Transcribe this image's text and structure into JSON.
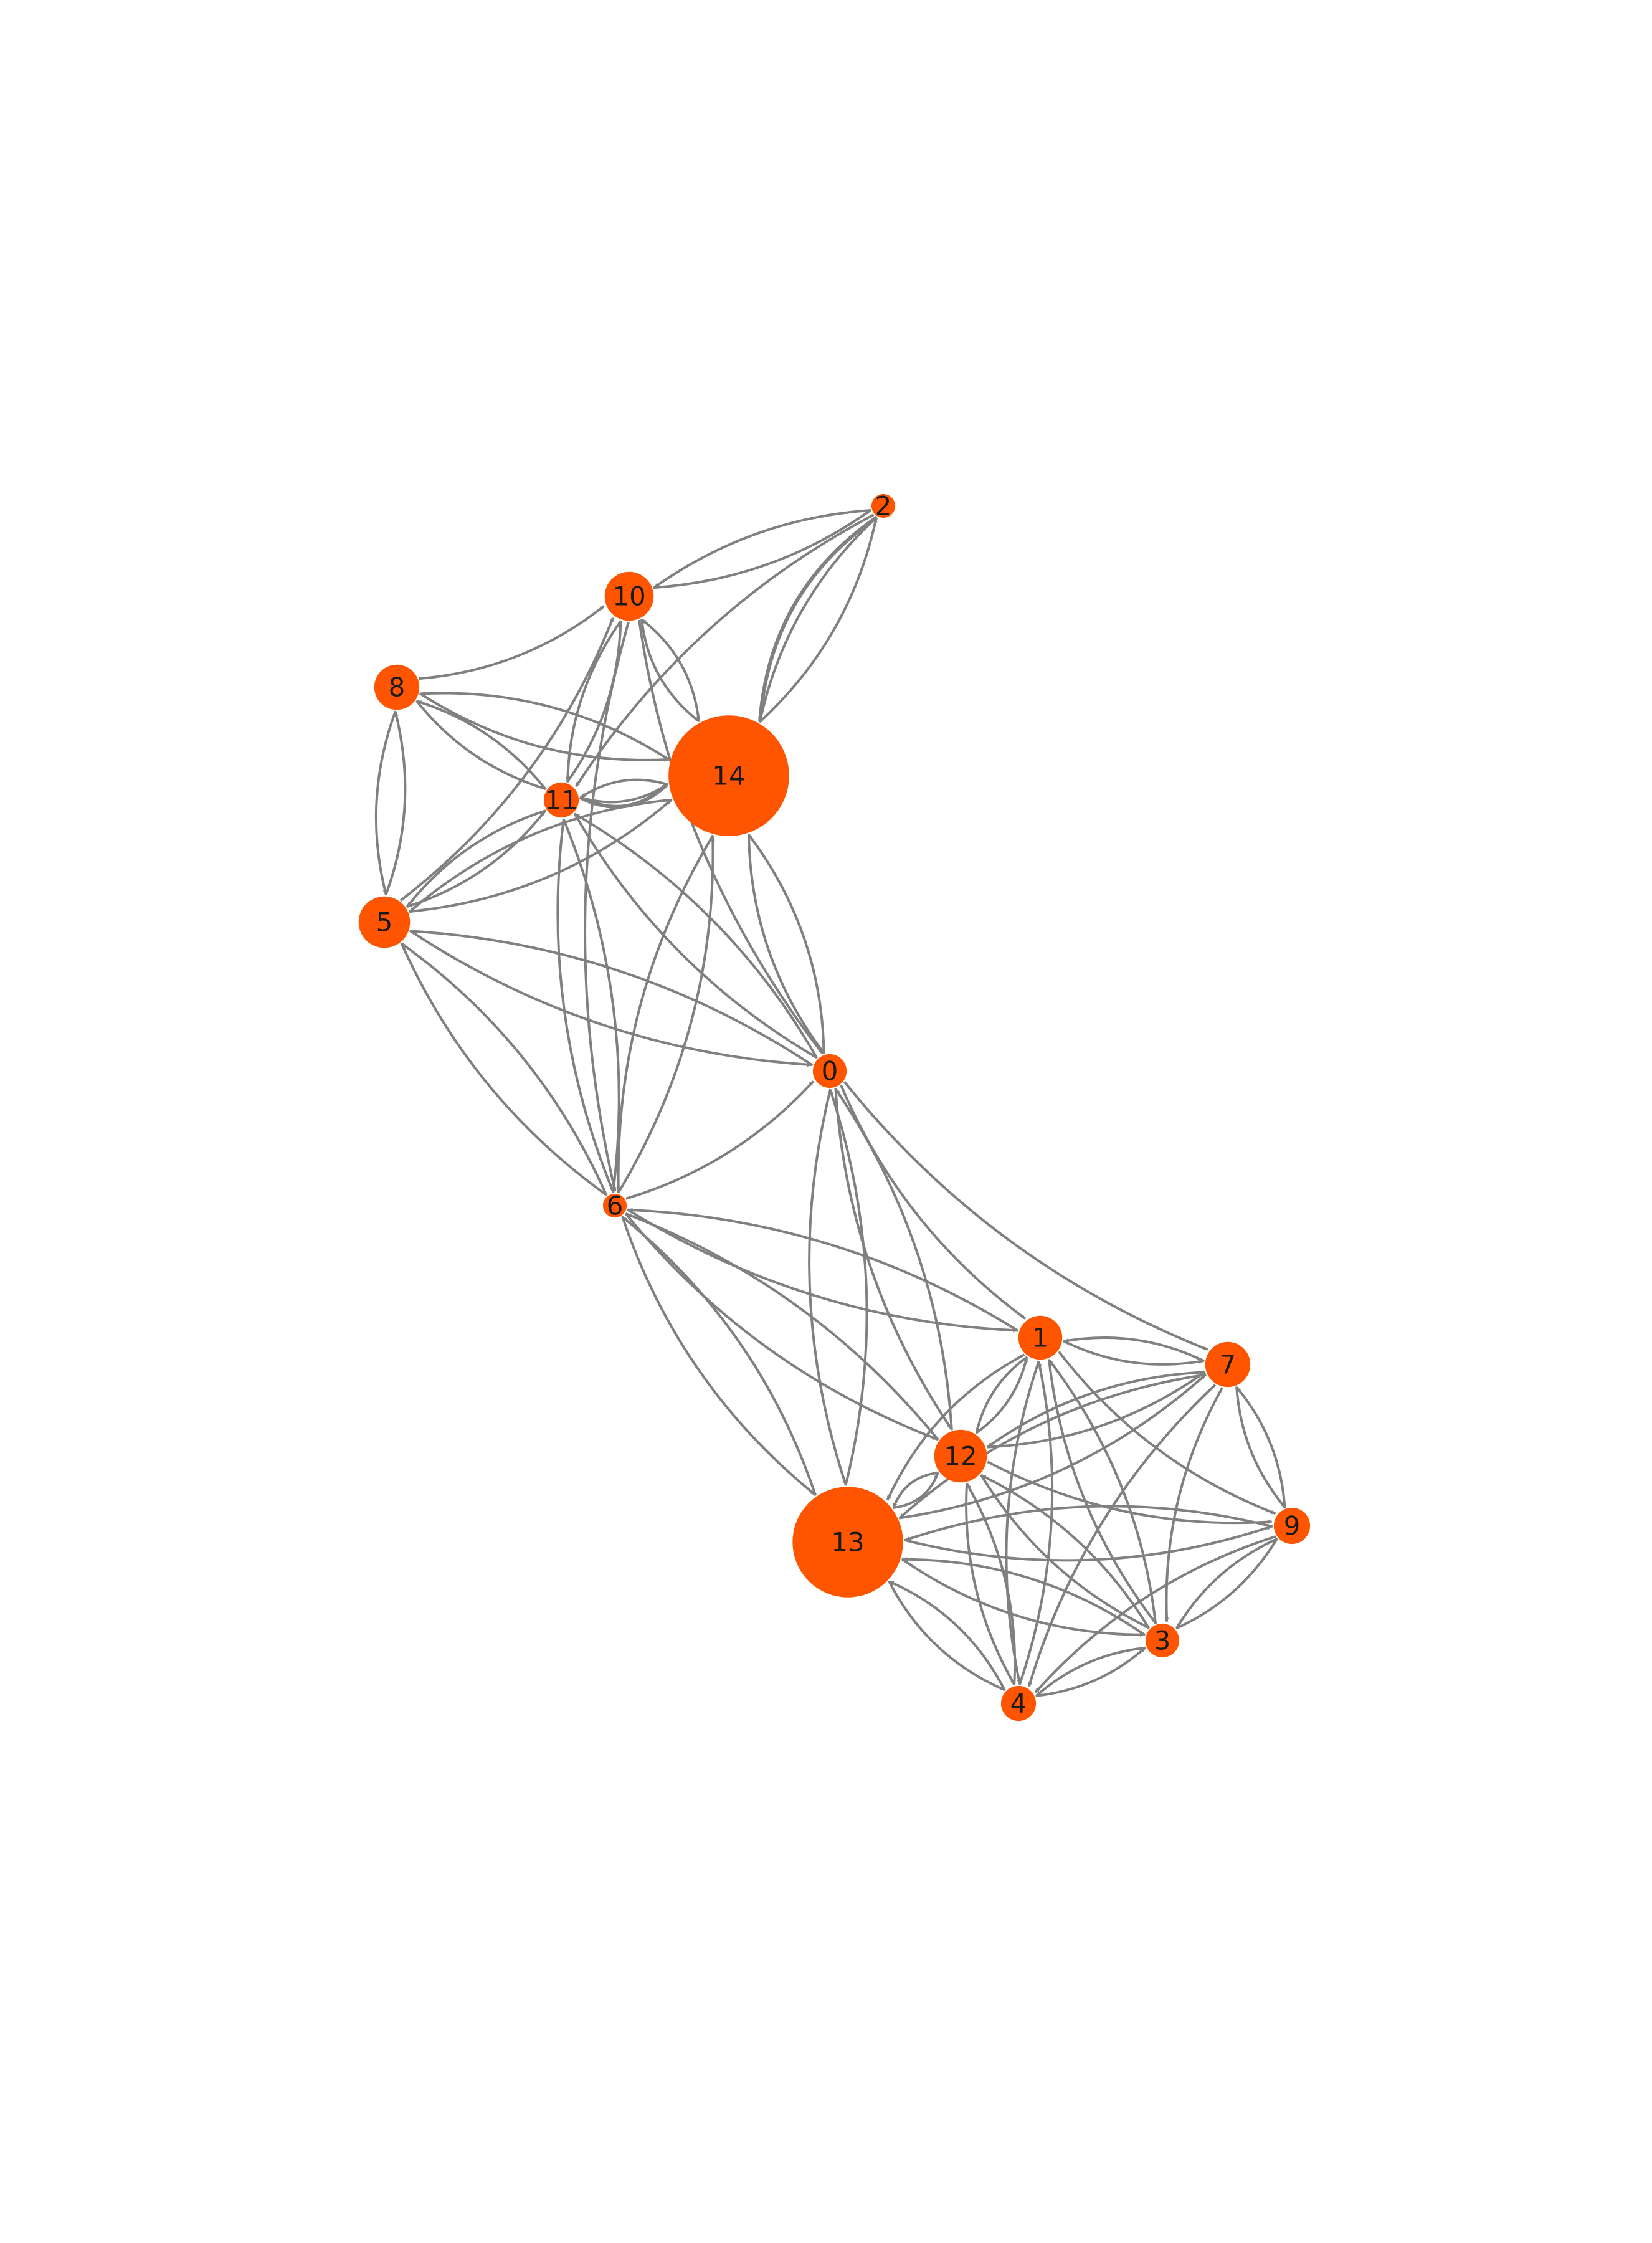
{
  "diagram": {
    "node_color": "#FF5500",
    "edge_color": "#808080",
    "nodes": [
      {
        "id": "0",
        "label": "0",
        "size": 0.13
      },
      {
        "id": "1",
        "label": "1",
        "size": 0.21
      },
      {
        "id": "2",
        "label": "2",
        "size": 0.05
      },
      {
        "id": "3",
        "label": "3",
        "size": 0.13
      },
      {
        "id": "4",
        "label": "4",
        "size": 0.14
      },
      {
        "id": "5",
        "label": "5",
        "size": 0.27
      },
      {
        "id": "6",
        "label": "6",
        "size": 0.05
      },
      {
        "id": "7",
        "label": "7",
        "size": 0.22
      },
      {
        "id": "8",
        "label": "8",
        "size": 0.22
      },
      {
        "id": "9",
        "label": "9",
        "size": 0.15
      },
      {
        "id": "10",
        "label": "10",
        "size": 0.25
      },
      {
        "id": "11",
        "label": "11",
        "size": 0.14
      },
      {
        "id": "12",
        "label": "12",
        "size": 0.28
      },
      {
        "id": "13",
        "label": "13",
        "size": 0.74
      },
      {
        "id": "14",
        "label": "14",
        "size": 0.82
      }
    ],
    "edges": [
      [
        "10",
        "2"
      ],
      [
        "2",
        "10"
      ],
      [
        "2",
        "14"
      ],
      [
        "2",
        "14"
      ],
      [
        "14",
        "2"
      ],
      [
        "10",
        "14"
      ],
      [
        "2",
        "11"
      ],
      [
        "8",
        "10"
      ],
      [
        "11",
        "10"
      ],
      [
        "10",
        "11"
      ],
      [
        "5",
        "10"
      ],
      [
        "10",
        "6"
      ],
      [
        "14",
        "10"
      ],
      [
        "10",
        "0"
      ],
      [
        "8",
        "14"
      ],
      [
        "14",
        "8"
      ],
      [
        "8",
        "11"
      ],
      [
        "11",
        "8"
      ],
      [
        "5",
        "8"
      ],
      [
        "8",
        "5"
      ],
      [
        "11",
        "14"
      ],
      [
        "14",
        "11"
      ],
      [
        "11",
        "14"
      ],
      [
        "5",
        "14"
      ],
      [
        "14",
        "5"
      ],
      [
        "0",
        "14"
      ],
      [
        "14",
        "0"
      ],
      [
        "6",
        "14"
      ],
      [
        "14",
        "6"
      ],
      [
        "5",
        "11"
      ],
      [
        "11",
        "5"
      ],
      [
        "0",
        "11"
      ],
      [
        "11",
        "0"
      ],
      [
        "6",
        "11"
      ],
      [
        "11",
        "6"
      ],
      [
        "0",
        "5"
      ],
      [
        "5",
        "0"
      ],
      [
        "6",
        "5"
      ],
      [
        "5",
        "6"
      ],
      [
        "6",
        "0"
      ],
      [
        "0",
        "13"
      ],
      [
        "13",
        "0"
      ],
      [
        "0",
        "1"
      ],
      [
        "0",
        "7"
      ],
      [
        "0",
        "12"
      ],
      [
        "12",
        "0"
      ],
      [
        "6",
        "1"
      ],
      [
        "1",
        "6"
      ],
      [
        "6",
        "12"
      ],
      [
        "12",
        "6"
      ],
      [
        "6",
        "13"
      ],
      [
        "13",
        "6"
      ],
      [
        "1",
        "7"
      ],
      [
        "7",
        "1"
      ],
      [
        "1",
        "12"
      ],
      [
        "12",
        "1"
      ],
      [
        "1",
        "3"
      ],
      [
        "3",
        "1"
      ],
      [
        "1",
        "9"
      ],
      [
        "1",
        "13"
      ],
      [
        "7",
        "12"
      ],
      [
        "12",
        "7"
      ],
      [
        "7",
        "9"
      ],
      [
        "9",
        "7"
      ],
      [
        "7",
        "13"
      ],
      [
        "13",
        "7"
      ],
      [
        "7",
        "3"
      ],
      [
        "7",
        "4"
      ],
      [
        "12",
        "13"
      ],
      [
        "13",
        "12"
      ],
      [
        "12",
        "9"
      ],
      [
        "12",
        "3"
      ],
      [
        "3",
        "12"
      ],
      [
        "12",
        "4"
      ],
      [
        "4",
        "12"
      ],
      [
        "13",
        "9"
      ],
      [
        "9",
        "13"
      ],
      [
        "13",
        "3"
      ],
      [
        "3",
        "13"
      ],
      [
        "4",
        "13"
      ],
      [
        "13",
        "4"
      ],
      [
        "9",
        "3"
      ],
      [
        "3",
        "4"
      ],
      [
        "4",
        "3"
      ],
      [
        "9",
        "4"
      ],
      [
        "3",
        "9"
      ],
      [
        "1",
        "4"
      ],
      [
        "4",
        "1"
      ]
    ]
  }
}
